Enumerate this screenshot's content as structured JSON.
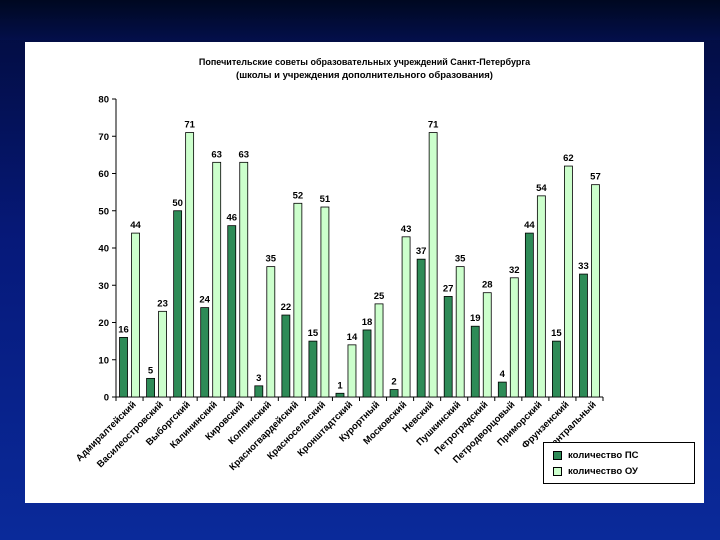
{
  "colors": {
    "ps": "#2e8b57",
    "ou": "#ccffcc",
    "stroke": "#000000"
  },
  "chart_data": {
    "type": "bar",
    "title": "Попечительские советы образовательных учреждений Санкт-Петербурга",
    "subtitle": "(школы и учреждения дополнительного образования)",
    "xlabel": "",
    "ylabel": "",
    "ylim": [
      0,
      80
    ],
    "yticks": [
      0,
      10,
      20,
      30,
      40,
      50,
      60,
      70,
      80
    ],
    "legend_position": "bottom-right",
    "categories": [
      "Адмиралтейский",
      "Василеостровский",
      "Выборгский",
      "Калининский",
      "Кировский",
      "Колпинский",
      "Красногвардейский",
      "Красносельский",
      "Кронштадтский",
      "Курортный",
      "Московский",
      "Невский",
      "Пушкинский",
      "Петроградский",
      "Петродворцовый",
      "Приморский",
      "Фрунзенский",
      "Центральный"
    ],
    "series": [
      {
        "name": "количество ПС",
        "values": [
          16,
          5,
          50,
          24,
          46,
          3,
          22,
          15,
          1,
          18,
          2,
          37,
          27,
          19,
          4,
          44,
          15,
          33
        ]
      },
      {
        "name": "количество ОУ",
        "values": [
          44,
          23,
          71,
          63,
          63,
          35,
          52,
          51,
          14,
          25,
          43,
          71,
          35,
          28,
          32,
          54,
          62,
          57
        ]
      }
    ]
  }
}
